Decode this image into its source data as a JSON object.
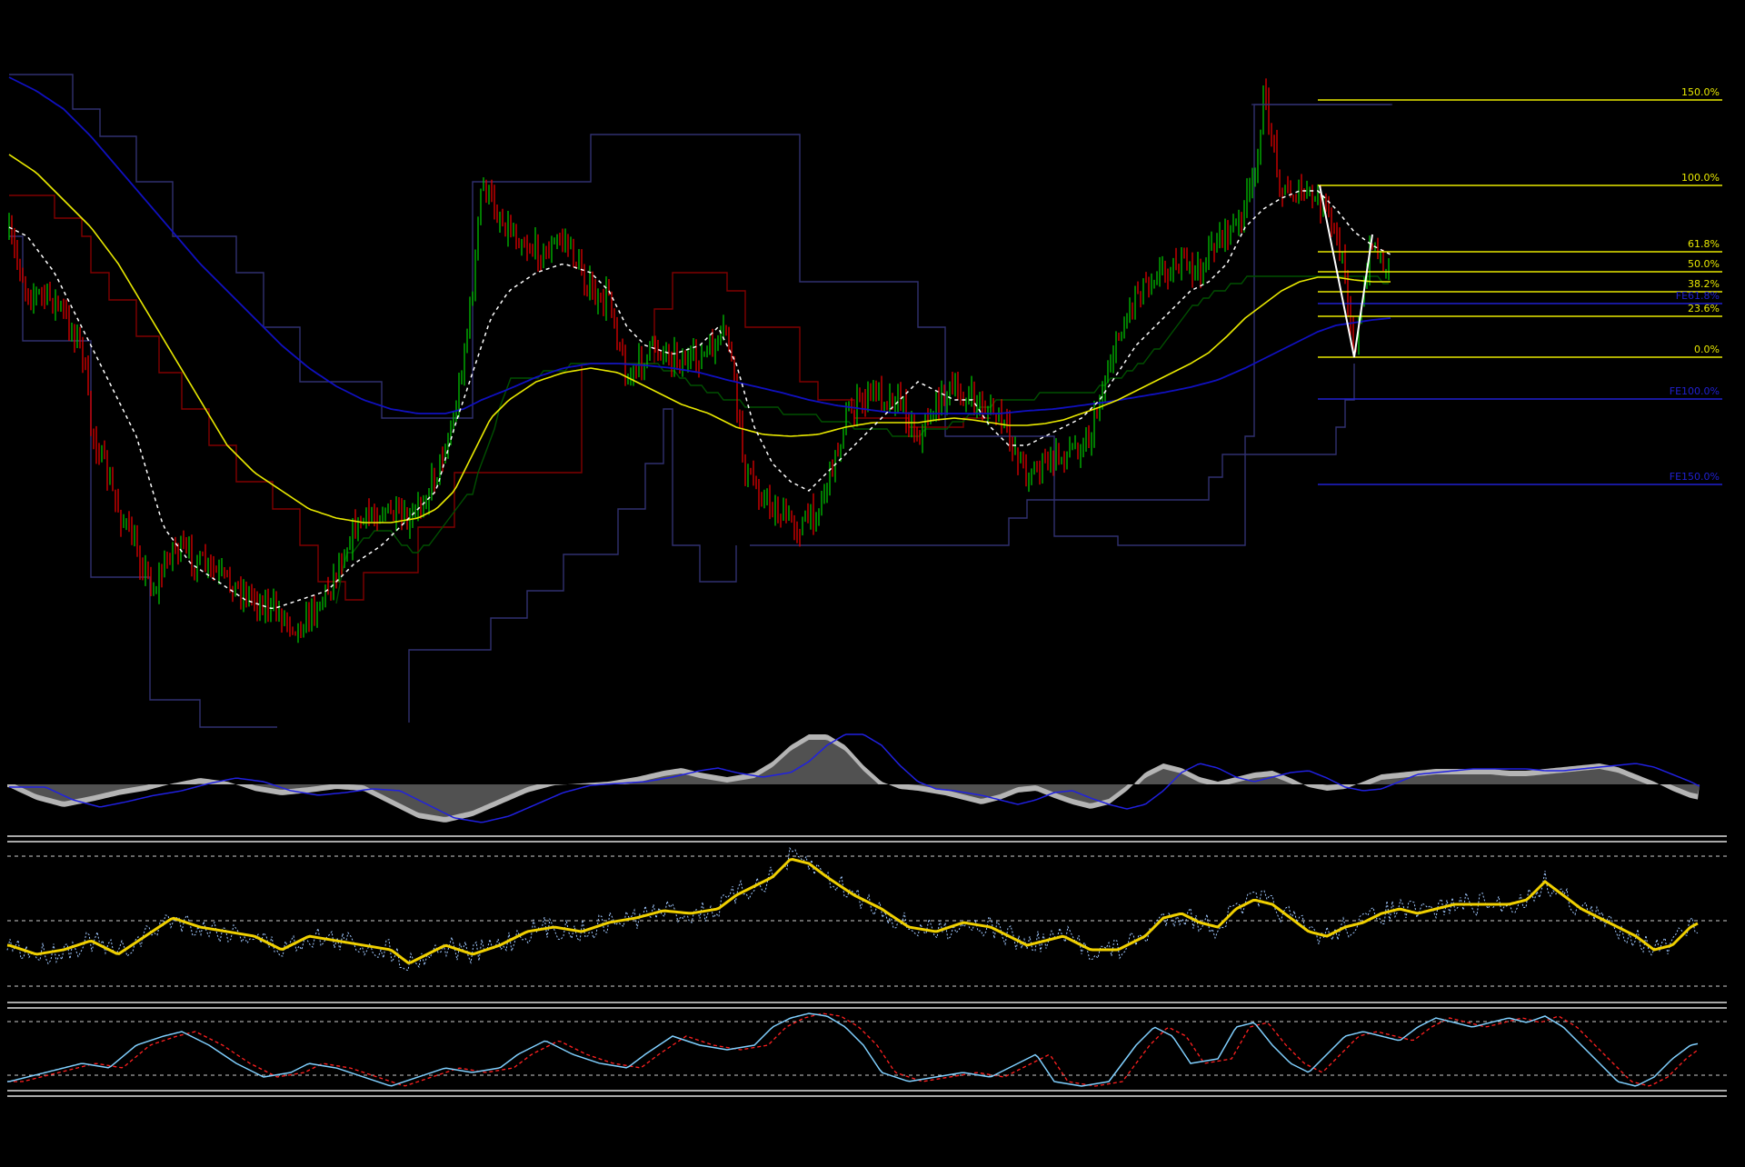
{
  "chart_data": [
    {
      "type": "candlestick",
      "panel": "price",
      "fib_levels": [
        {
          "label": "150.0%",
          "color": "#e8e800"
        },
        {
          "label": "100.0%",
          "color": "#e8e800"
        },
        {
          "label": "61.8%",
          "color": "#e8e800"
        },
        {
          "label": "50.0%",
          "color": "#e8e800"
        },
        {
          "label": "38.2%",
          "color": "#e8e800"
        },
        {
          "label": "23.6%",
          "color": "#e8e800"
        },
        {
          "label": "0.0%",
          "color": "#e8e800"
        }
      ],
      "fe_levels": [
        {
          "label": "FE61.8%",
          "color": "#2020d0"
        },
        {
          "label": "FE100.0%",
          "color": "#2020d0"
        },
        {
          "label": "FE150.0%",
          "color": "#2020d0"
        }
      ],
      "colors": {
        "bull": "#00c000",
        "bear": "#e00000",
        "ma_fast": "#ffffff",
        "ma_mid": "#e8e800",
        "ma_slow": "#1010c0",
        "channel_upper": "#303070",
        "channel_red": "#800000",
        "channel_green": "#005000"
      },
      "grid": false
    },
    {
      "type": "area",
      "panel": "histogram",
      "colors": {
        "fill": "#b4b4b4",
        "signal": "#2020e0"
      }
    },
    {
      "type": "line",
      "panel": "oscillator-1",
      "colors": {
        "main": "#f0d000",
        "raw": "#a0c8ff",
        "levels": "#ffffff"
      }
    },
    {
      "type": "line",
      "panel": "oscillator-2",
      "colors": {
        "main": "#80d0ff",
        "signal": "#ff2020",
        "levels": "#ffffff"
      }
    }
  ]
}
